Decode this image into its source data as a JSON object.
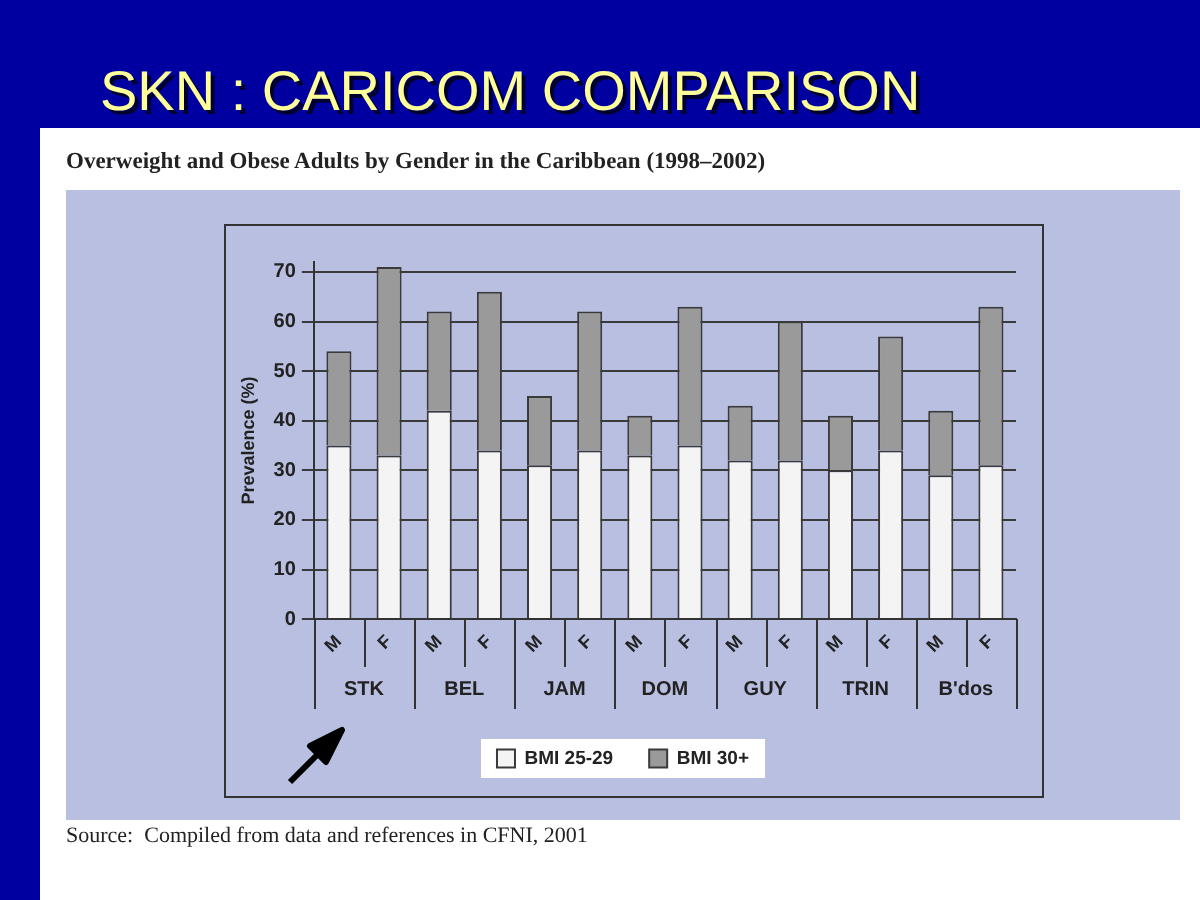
{
  "chart_data": {
    "type": "bar",
    "title": "SKN : CARICOM COMPARISON",
    "subtitle": "Overweight and Obese Adults by Gender in the Caribbean (1998–2002)",
    "ylabel": "Prevalence (%)",
    "categories": [
      "M",
      "F",
      "M",
      "F",
      "M",
      "F",
      "M",
      "F",
      "M",
      "F",
      "M",
      "F",
      "M",
      "F"
    ],
    "series": [
      {
        "name": "BMI 25-29",
        "color": "#f4f4f4",
        "values": [
          35,
          33,
          42,
          34,
          31,
          34,
          33,
          35,
          32,
          32,
          30,
          34,
          29,
          31
        ]
      },
      {
        "name": "BMI 30+",
        "color": "#9a9a9a",
        "values": [
          19,
          38,
          20,
          32,
          14,
          28,
          8,
          28,
          11,
          28,
          11,
          23,
          13,
          32
        ]
      }
    ],
    "stacked": true,
    "ylim": [
      0,
      72
    ],
    "yticks": [
      0,
      10,
      20,
      30,
      40,
      50,
      60,
      70
    ],
    "grid": "y",
    "legend": "bottom",
    "annotations": [
      "STK",
      "BEL",
      "JAM",
      "DOM",
      "GUY",
      "TRIN",
      "B'dos",
      "Source:  Compiled from data and references in CFNI, 2001"
    ]
  }
}
